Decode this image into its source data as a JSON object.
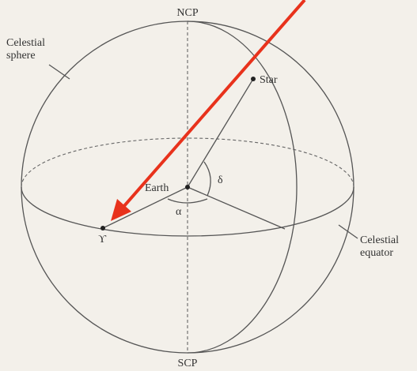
{
  "labels": {
    "ncp": "NCP",
    "scp": "SCP",
    "sphere": [
      "Celestial",
      "sphere"
    ],
    "star": "Star",
    "earth": "Earth",
    "delta": "δ",
    "alpha": "α",
    "vernal": "ϒ",
    "equator": [
      "Celestial",
      "equator"
    ]
  }
}
